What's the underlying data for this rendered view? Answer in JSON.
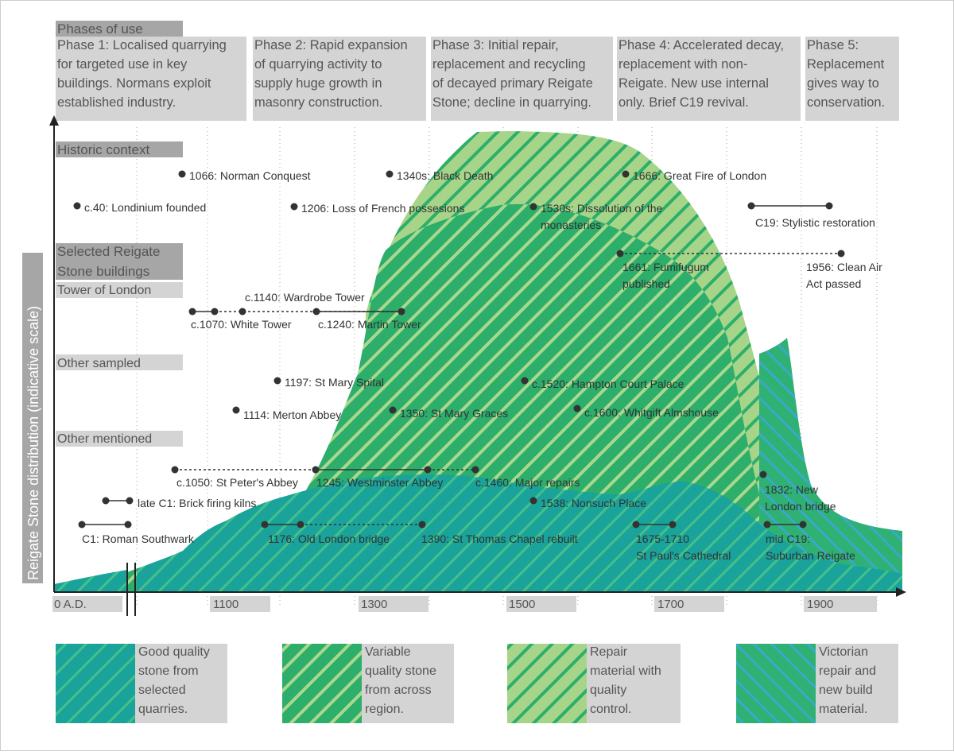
{
  "phases_title": "Phases of use",
  "phases": [
    {
      "lines": [
        "Phase 1: Localised quarrying",
        "for targeted use in key",
        "buildings. Normans exploit",
        "established industry."
      ]
    },
    {
      "lines": [
        "Phase 2: Rapid expansion",
        "of quarrying activity to",
        "supply huge growth in",
        "masonry construction."
      ]
    },
    {
      "lines": [
        "Phase 3: Initial repair,",
        "replacement and recycling",
        "of decayed primary Reigate",
        "Stone; decline in quarrying."
      ]
    },
    {
      "lines": [
        "Phase 4: Accelerated decay,",
        "replacement with non-",
        "Reigate. New use internal",
        "only. Brief C19 revival."
      ]
    },
    {
      "lines": [
        "Phase 5:",
        "Replacement",
        "gives way to",
        "conservation."
      ]
    }
  ],
  "historic_title": "Historic context",
  "buildings_title": [
    "Selected Reigate",
    "Stone buildings"
  ],
  "sub_tower": "Tower of London",
  "sub_other_sampled": "Other sampled",
  "sub_other_mentioned": "Other mentioned",
  "y_axis_label": "Reigate Stone distribution (indicative scale)",
  "x_ticks": [
    "0 A.D.",
    "1100",
    "1300",
    "1500",
    "1700",
    "1900"
  ],
  "events": {
    "londinium": "c.40: Londinium founded",
    "norman": "1066: Norman Conquest",
    "french": "1206: Loss of French possesions",
    "black_death": "1340s: Black Death",
    "dissolution": [
      "1530s: Dissolution of the",
      "monasteries"
    ],
    "great_fire": "1666: Great Fire of London",
    "stylistic": "C19: Stylistic restoration",
    "fumifugum": [
      "1661: Fumifugum",
      "published"
    ],
    "clean_air": [
      "1956: Clean Air",
      "Act passed"
    ],
    "wardrobe": "c.1140: Wardrobe Tower",
    "white_tower": "c.1070: White Tower",
    "martin": "c.1240: Martin Tower",
    "spital": "1197: St Mary Spital",
    "merton": "1114: Merton Abbey",
    "graces": "1350: St Mary Graces",
    "hampton": "c.1520: Hampton Court Palace",
    "whitgift": "c.1600: Whitgift Almshouse",
    "st_peters": "c.1050: St Peter's Abbey",
    "westminster": "1245: Westminster Abbey",
    "major_repairs": "c.1460: Major repairs",
    "nonsuch": "1538: Nonsuch Place",
    "new_london_bridge": [
      "1832: New",
      "London bridge"
    ],
    "brick": "late C1: Brick firing kilns",
    "southwark": "C1: Roman Southwark",
    "old_london_bridge": "1176: Old London bridge",
    "st_thomas": "1390: St Thomas Chapel rebuilt",
    "st_pauls": [
      "1675-1710",
      "St Paul's Cathedral"
    ],
    "suburban": [
      "mid C19:",
      "Suburban Reigate"
    ]
  },
  "legend": [
    {
      "lines": [
        "Good quality",
        "stone from",
        "selected",
        "quarries."
      ]
    },
    {
      "lines": [
        "Variable",
        "quality stone",
        "from across",
        "region."
      ]
    },
    {
      "lines": [
        "Repair",
        "material with",
        "quality",
        "control."
      ]
    },
    {
      "lines": [
        "Victorian",
        "repair and",
        "new build",
        "material."
      ]
    }
  ],
  "colors": {
    "teal": "#1aa39a",
    "green": "#2dae6b",
    "light_green": "#a6d589",
    "victorian": "#2fb174",
    "stripe_blue": "#3aa9c8",
    "label_bg": "#d4d4d4",
    "title_bg": "#a6a6a6"
  }
}
